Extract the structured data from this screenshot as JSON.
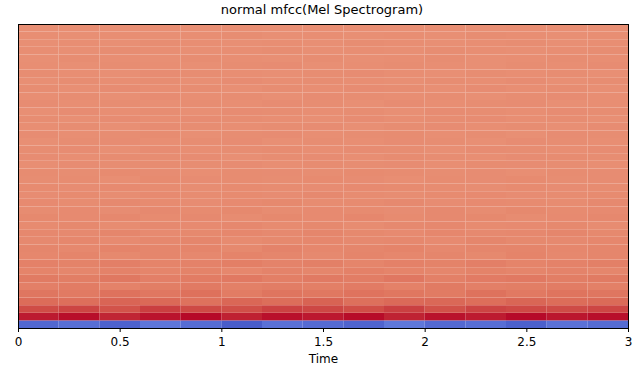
{
  "chart_data": {
    "type": "heatmap",
    "title": "normal mfcc(Mel Spectrogram)",
    "x_label": "Time",
    "xlim": [
      0,
      3
    ],
    "xticks": [
      0,
      0.5,
      1,
      1.5,
      2,
      2.5,
      3
    ],
    "tick_labels": "x",
    "time_edges": [
      0,
      0.2,
      0.4,
      0.6,
      0.8,
      1,
      1.2,
      1.4,
      1.6,
      1.8,
      2,
      2.2,
      2.4,
      2.6,
      2.8,
      3
    ],
    "color_range": [
      -300,
      150
    ],
    "cells": [
      [
        -275,
        -268,
        -280,
        -262,
        -270,
        -285,
        -266,
        -272,
        -278,
        -260,
        -274,
        -269,
        -281,
        -265,
        -271
      ],
      [
        128,
        140,
        118,
        135,
        145,
        122,
        138,
        130,
        142,
        120,
        136,
        127,
        144,
        132,
        139
      ],
      [
        78,
        85,
        70,
        92,
        80,
        74,
        88,
        83,
        76,
        90,
        72,
        86,
        81,
        79,
        84
      ],
      [
        42,
        38,
        50,
        45,
        35,
        48,
        40,
        52,
        37,
        44,
        46,
        39,
        49,
        41,
        43
      ],
      [
        30,
        25,
        34,
        28,
        36,
        22,
        31,
        27,
        33,
        29,
        24,
        35,
        26,
        32,
        30
      ],
      [
        18,
        22,
        15,
        20,
        25,
        17,
        21,
        19,
        23,
        16,
        24,
        18,
        20,
        22,
        17
      ],
      [
        24,
        20,
        27,
        18,
        22,
        26,
        19,
        25,
        21,
        28,
        17,
        23,
        26,
        20,
        24
      ],
      [
        12,
        9,
        15,
        11,
        14,
        8,
        13,
        10,
        16,
        12,
        9,
        14,
        11,
        13,
        10
      ],
      [
        16,
        14,
        18,
        12,
        15,
        19,
        13,
        17,
        11,
        16,
        14,
        18,
        12,
        15,
        17
      ],
      [
        8,
        11,
        6,
        10,
        7,
        12,
        9,
        5,
        11,
        8,
        10,
        6,
        12,
        7,
        9
      ],
      [
        10,
        7,
        12,
        9,
        11,
        6,
        13,
        8,
        10,
        12,
        7,
        9,
        11,
        8,
        10
      ],
      [
        5,
        8,
        4,
        7,
        9,
        3,
        6,
        8,
        5,
        7,
        4,
        9,
        6,
        5,
        8
      ],
      [
        7,
        5,
        9,
        4,
        6,
        8,
        5,
        10,
        6,
        4,
        8,
        5,
        7,
        9,
        6
      ],
      [
        3,
        6,
        2,
        5,
        4,
        7,
        3,
        6,
        2,
        5,
        7,
        3,
        4,
        6,
        2
      ],
      [
        6,
        4,
        7,
        3,
        5,
        2,
        6,
        4,
        8,
        3,
        5,
        6,
        2,
        4,
        7
      ],
      [
        2,
        4,
        1,
        5,
        3,
        6,
        2,
        4,
        3,
        1,
        5,
        2,
        6,
        3,
        4
      ],
      [
        4,
        2,
        5,
        3,
        1,
        4,
        6,
        2,
        3,
        5,
        1,
        4,
        3,
        2,
        5
      ],
      [
        1,
        3,
        0,
        4,
        2,
        3,
        1,
        5,
        2,
        0,
        3,
        4,
        1,
        2,
        3
      ],
      [
        3,
        1,
        4,
        2,
        0,
        3,
        2,
        1,
        4,
        3,
        2,
        0,
        3,
        1,
        2
      ],
      [
        0,
        2,
        -1,
        3,
        1,
        2,
        0,
        3,
        1,
        -1,
        2,
        1,
        3,
        0,
        1
      ],
      [
        2,
        0,
        3,
        1,
        -1,
        2,
        1,
        0,
        3,
        2,
        0,
        1,
        -1,
        2,
        1
      ],
      [
        -1,
        1,
        0,
        2,
        0,
        1,
        -1,
        2,
        0,
        1,
        -1,
        2,
        1,
        0,
        -1
      ],
      [
        1,
        -1,
        2,
        0,
        1,
        -2,
        0,
        1,
        -1,
        2,
        0,
        -1,
        1,
        2,
        0
      ],
      [
        0,
        1,
        -2,
        1,
        -1,
        0,
        2,
        -1,
        1,
        0,
        -2,
        1,
        0,
        -1,
        1
      ],
      [
        -2,
        0,
        1,
        -1,
        0,
        1,
        -2,
        0,
        -1,
        1,
        0,
        -2,
        1,
        0,
        -1
      ],
      [
        1,
        -1,
        0,
        2,
        -2,
        0,
        1,
        -1,
        0,
        2,
        -1,
        0,
        -2,
        1,
        0
      ],
      [
        -1,
        0,
        -2,
        1,
        0,
        -1,
        0,
        1,
        -2,
        0,
        1,
        -1,
        0,
        -2,
        1
      ],
      [
        0,
        -2,
        1,
        -1,
        1,
        0,
        -1,
        -2,
        1,
        -1,
        0,
        1,
        -1,
        0,
        -2
      ],
      [
        -2,
        1,
        -1,
        0,
        -2,
        1,
        0,
        -1,
        0,
        -2,
        1,
        0,
        -1,
        1,
        0
      ],
      [
        1,
        -1,
        0,
        -2,
        0,
        -1,
        1,
        0,
        -2,
        1,
        -1,
        0,
        1,
        -2,
        -1
      ],
      [
        -1,
        0,
        -2,
        1,
        -1,
        0,
        -2,
        1,
        0,
        -1,
        0,
        -2,
        0,
        1,
        -1
      ],
      [
        0,
        -2,
        1,
        -1,
        0,
        -2,
        0,
        -1,
        1,
        0,
        -2,
        1,
        -1,
        0,
        -2
      ],
      [
        -2,
        0,
        -1,
        0,
        -2,
        1,
        -1,
        0,
        -1,
        -2,
        0,
        -1,
        1,
        -2,
        0
      ],
      [
        0,
        -1,
        -2,
        1,
        0,
        -1,
        -2,
        0,
        1,
        -1,
        -2,
        0,
        -1,
        0,
        -2
      ],
      [
        -1,
        -2,
        0,
        -1,
        -2,
        0,
        1,
        -2,
        -1,
        0,
        -1,
        -2,
        0,
        -1,
        1
      ],
      [
        -2,
        0,
        -1,
        -2,
        0,
        -1,
        -2,
        0,
        -2,
        -1,
        0,
        -2,
        -1,
        0,
        -1
      ],
      [
        -1,
        -2,
        0,
        -1,
        -2,
        -1,
        0,
        -2,
        -1,
        -2,
        0,
        -1,
        -2,
        -1,
        0
      ],
      [
        -2,
        -1,
        -2,
        0,
        -1,
        -2,
        -1,
        -2,
        0,
        -1,
        -2,
        -1,
        0,
        -2,
        -1
      ],
      [
        -1,
        -2,
        -1,
        -2,
        -1,
        0,
        -2,
        -1,
        -2,
        -1,
        -2,
        0,
        -1,
        -2,
        -1
      ],
      [
        -2,
        -1,
        -2,
        -1,
        -2,
        -1,
        -2,
        -1,
        -1,
        -2,
        -1,
        -2,
        -1,
        -1,
        -2
      ]
    ]
  }
}
